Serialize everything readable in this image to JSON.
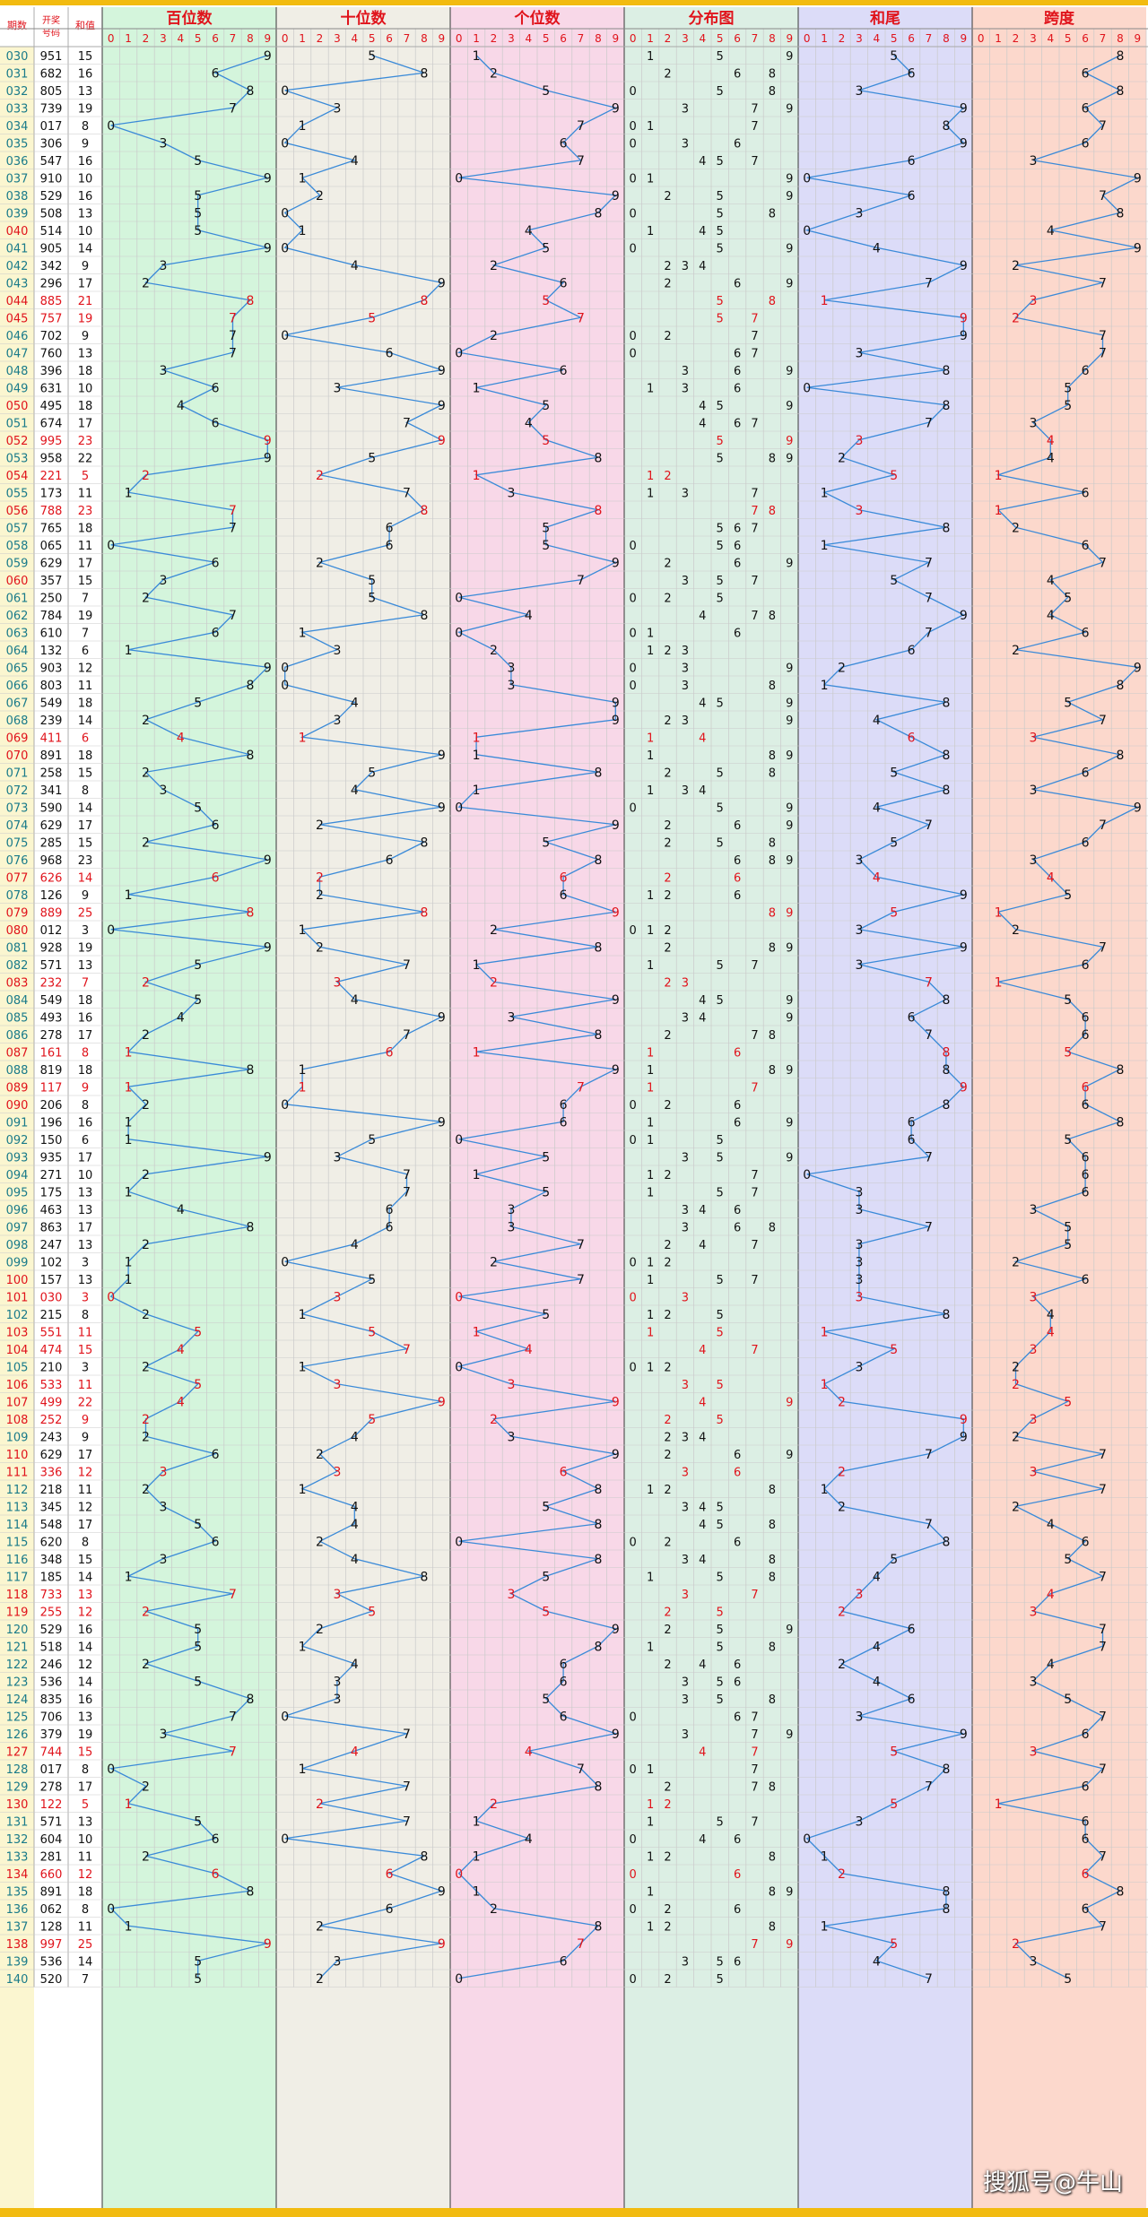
{
  "chart_data": {
    "type": "table",
    "title": "",
    "header": {
      "period": "期数",
      "draw": "开奖号码",
      "sum": "和值",
      "sections": [
        "百位数",
        "十位数",
        "个位数",
        "分布图",
        "和尾",
        "跨度"
      ],
      "digits": [
        "0",
        "1",
        "2",
        "3",
        "4",
        "5",
        "6",
        "7",
        "8",
        "9"
      ]
    },
    "colors": {
      "red": "#e0131b",
      "teal": "#1a7b8a",
      "line": "#3a8ad8",
      "grid": "#c9c9c9",
      "bands": [
        "#d4f5dc",
        "#f0eee6",
        "#f8d8e8",
        "#dcefe4",
        "#dcdcf8",
        "#fcd8cc"
      ],
      "yellow": "#f2bb10"
    },
    "rows": [
      {
        "period": "030",
        "draw": "951",
        "sum": 15,
        "odd": false
      },
      {
        "period": "031",
        "draw": "682",
        "sum": 16,
        "odd": false
      },
      {
        "period": "032",
        "draw": "805",
        "sum": 13,
        "odd": false
      },
      {
        "period": "033",
        "draw": "739",
        "sum": 19,
        "odd": false
      },
      {
        "period": "034",
        "draw": "017",
        "sum": 8,
        "odd": false
      },
      {
        "period": "035",
        "draw": "306",
        "sum": 9,
        "odd": false
      },
      {
        "period": "036",
        "draw": "547",
        "sum": 16,
        "odd": false
      },
      {
        "period": "037",
        "draw": "910",
        "sum": 10,
        "odd": false
      },
      {
        "period": "038",
        "draw": "529",
        "sum": 16,
        "odd": false
      },
      {
        "period": "039",
        "draw": "508",
        "sum": 13,
        "odd": false
      },
      {
        "period": "040",
        "draw": "514",
        "sum": 10,
        "odd": true
      },
      {
        "period": "041",
        "draw": "905",
        "sum": 14,
        "odd": false
      },
      {
        "period": "042",
        "draw": "342",
        "sum": 9,
        "odd": false
      },
      {
        "period": "043",
        "draw": "296",
        "sum": 17,
        "odd": false
      },
      {
        "period": "044",
        "draw": "885",
        "sum": 21,
        "odd": true
      },
      {
        "period": "045",
        "draw": "757",
        "sum": 19,
        "odd": true
      },
      {
        "period": "046",
        "draw": "702",
        "sum": 9,
        "odd": false
      },
      {
        "period": "047",
        "draw": "760",
        "sum": 13,
        "odd": false
      },
      {
        "period": "048",
        "draw": "396",
        "sum": 18,
        "odd": false
      },
      {
        "period": "049",
        "draw": "631",
        "sum": 10,
        "odd": false
      },
      {
        "period": "050",
        "draw": "495",
        "sum": 18,
        "odd": true
      },
      {
        "period": "051",
        "draw": "674",
        "sum": 17,
        "odd": false
      },
      {
        "period": "052",
        "draw": "995",
        "sum": 23,
        "odd": true
      },
      {
        "period": "053",
        "draw": "958",
        "sum": 22,
        "odd": false
      },
      {
        "period": "054",
        "draw": "221",
        "sum": 5,
        "odd": true
      },
      {
        "period": "055",
        "draw": "173",
        "sum": 11,
        "odd": false
      },
      {
        "period": "056",
        "draw": "788",
        "sum": 23,
        "odd": true
      },
      {
        "period": "057",
        "draw": "765",
        "sum": 18,
        "odd": false
      },
      {
        "period": "058",
        "draw": "065",
        "sum": 11,
        "odd": false
      },
      {
        "period": "059",
        "draw": "629",
        "sum": 17,
        "odd": false
      },
      {
        "period": "060",
        "draw": "357",
        "sum": 15,
        "odd": true
      },
      {
        "period": "061",
        "draw": "250",
        "sum": 7,
        "odd": false
      },
      {
        "period": "062",
        "draw": "784",
        "sum": 19,
        "odd": false
      },
      {
        "period": "063",
        "draw": "610",
        "sum": 7,
        "odd": false
      },
      {
        "period": "064",
        "draw": "132",
        "sum": 6,
        "odd": false
      },
      {
        "period": "065",
        "draw": "903",
        "sum": 12,
        "odd": false
      },
      {
        "period": "066",
        "draw": "803",
        "sum": 11,
        "odd": false
      },
      {
        "period": "067",
        "draw": "549",
        "sum": 18,
        "odd": false
      },
      {
        "period": "068",
        "draw": "239",
        "sum": 14,
        "odd": false
      },
      {
        "period": "069",
        "draw": "411",
        "sum": 6,
        "odd": true
      },
      {
        "period": "070",
        "draw": "891",
        "sum": 18,
        "odd": true
      },
      {
        "period": "071",
        "draw": "258",
        "sum": 15,
        "odd": false
      },
      {
        "period": "072",
        "draw": "341",
        "sum": 8,
        "odd": false
      },
      {
        "period": "073",
        "draw": "590",
        "sum": 14,
        "odd": false
      },
      {
        "period": "074",
        "draw": "629",
        "sum": 17,
        "odd": false
      },
      {
        "period": "075",
        "draw": "285",
        "sum": 15,
        "odd": false
      },
      {
        "period": "076",
        "draw": "968",
        "sum": 23,
        "odd": false
      },
      {
        "period": "077",
        "draw": "626",
        "sum": 14,
        "odd": true
      },
      {
        "period": "078",
        "draw": "126",
        "sum": 9,
        "odd": false
      },
      {
        "period": "079",
        "draw": "889",
        "sum": 25,
        "odd": true
      },
      {
        "period": "080",
        "draw": "012",
        "sum": 3,
        "odd": true
      },
      {
        "period": "081",
        "draw": "928",
        "sum": 19,
        "odd": false
      },
      {
        "period": "082",
        "draw": "571",
        "sum": 13,
        "odd": false
      },
      {
        "period": "083",
        "draw": "232",
        "sum": 7,
        "odd": true
      },
      {
        "period": "084",
        "draw": "549",
        "sum": 18,
        "odd": false
      },
      {
        "period": "085",
        "draw": "493",
        "sum": 16,
        "odd": false
      },
      {
        "period": "086",
        "draw": "278",
        "sum": 17,
        "odd": false
      },
      {
        "period": "087",
        "draw": "161",
        "sum": 8,
        "odd": true
      },
      {
        "period": "088",
        "draw": "819",
        "sum": 18,
        "odd": false
      },
      {
        "period": "089",
        "draw": "117",
        "sum": 9,
        "odd": true
      },
      {
        "period": "090",
        "draw": "206",
        "sum": 8,
        "odd": true
      },
      {
        "period": "091",
        "draw": "196",
        "sum": 16,
        "odd": false
      },
      {
        "period": "092",
        "draw": "150",
        "sum": 6,
        "odd": false
      },
      {
        "period": "093",
        "draw": "935",
        "sum": 17,
        "odd": false
      },
      {
        "period": "094",
        "draw": "271",
        "sum": 10,
        "odd": false
      },
      {
        "period": "095",
        "draw": "175",
        "sum": 13,
        "odd": false
      },
      {
        "period": "096",
        "draw": "463",
        "sum": 13,
        "odd": false
      },
      {
        "period": "097",
        "draw": "863",
        "sum": 17,
        "odd": false
      },
      {
        "period": "098",
        "draw": "247",
        "sum": 13,
        "odd": false
      },
      {
        "period": "099",
        "draw": "102",
        "sum": 3,
        "odd": false
      },
      {
        "period": "100",
        "draw": "157",
        "sum": 13,
        "odd": true
      },
      {
        "period": "101",
        "draw": "030",
        "sum": 3,
        "odd": true
      },
      {
        "period": "102",
        "draw": "215",
        "sum": 8,
        "odd": false
      },
      {
        "period": "103",
        "draw": "551",
        "sum": 11,
        "odd": true
      },
      {
        "period": "104",
        "draw": "474",
        "sum": 15,
        "odd": true
      },
      {
        "period": "105",
        "draw": "210",
        "sum": 3,
        "odd": false
      },
      {
        "period": "106",
        "draw": "533",
        "sum": 11,
        "odd": true
      },
      {
        "period": "107",
        "draw": "499",
        "sum": 22,
        "odd": true
      },
      {
        "period": "108",
        "draw": "252",
        "sum": 9,
        "odd": true
      },
      {
        "period": "109",
        "draw": "243",
        "sum": 9,
        "odd": false
      },
      {
        "period": "110",
        "draw": "629",
        "sum": 17,
        "odd": true
      },
      {
        "period": "111",
        "draw": "336",
        "sum": 12,
        "odd": true
      },
      {
        "period": "112",
        "draw": "218",
        "sum": 11,
        "odd": false
      },
      {
        "period": "113",
        "draw": "345",
        "sum": 12,
        "odd": false
      },
      {
        "period": "114",
        "draw": "548",
        "sum": 17,
        "odd": false
      },
      {
        "period": "115",
        "draw": "620",
        "sum": 8,
        "odd": false
      },
      {
        "period": "116",
        "draw": "348",
        "sum": 15,
        "odd": false
      },
      {
        "period": "117",
        "draw": "185",
        "sum": 14,
        "odd": false
      },
      {
        "period": "118",
        "draw": "733",
        "sum": 13,
        "odd": true
      },
      {
        "period": "119",
        "draw": "255",
        "sum": 12,
        "odd": true
      },
      {
        "period": "120",
        "draw": "529",
        "sum": 16,
        "odd": false
      },
      {
        "period": "121",
        "draw": "518",
        "sum": 14,
        "odd": false
      },
      {
        "period": "122",
        "draw": "246",
        "sum": 12,
        "odd": false
      },
      {
        "period": "123",
        "draw": "536",
        "sum": 14,
        "odd": false
      },
      {
        "period": "124",
        "draw": "835",
        "sum": 16,
        "odd": false
      },
      {
        "period": "125",
        "draw": "706",
        "sum": 13,
        "odd": false
      },
      {
        "period": "126",
        "draw": "379",
        "sum": 19,
        "odd": false
      },
      {
        "period": "127",
        "draw": "744",
        "sum": 15,
        "odd": true
      },
      {
        "period": "128",
        "draw": "017",
        "sum": 8,
        "odd": false
      },
      {
        "period": "129",
        "draw": "278",
        "sum": 17,
        "odd": false
      },
      {
        "period": "130",
        "draw": "122",
        "sum": 5,
        "odd": true
      },
      {
        "period": "131",
        "draw": "571",
        "sum": 13,
        "odd": false
      },
      {
        "period": "132",
        "draw": "604",
        "sum": 10,
        "odd": false
      },
      {
        "period": "133",
        "draw": "281",
        "sum": 11,
        "odd": false
      },
      {
        "period": "134",
        "draw": "660",
        "sum": 12,
        "odd": true
      },
      {
        "period": "135",
        "draw": "891",
        "sum": 18,
        "odd": false
      },
      {
        "period": "136",
        "draw": "062",
        "sum": 8,
        "odd": false
      },
      {
        "period": "137",
        "draw": "128",
        "sum": 11,
        "odd": false
      },
      {
        "period": "138",
        "draw": "997",
        "sum": 25,
        "odd": true
      },
      {
        "period": "139",
        "draw": "536",
        "sum": 14,
        "odd": false
      },
      {
        "period": "140",
        "draw": "520",
        "sum": 7,
        "odd": false
      }
    ]
  },
  "watermark": "搜狐号@牛山"
}
